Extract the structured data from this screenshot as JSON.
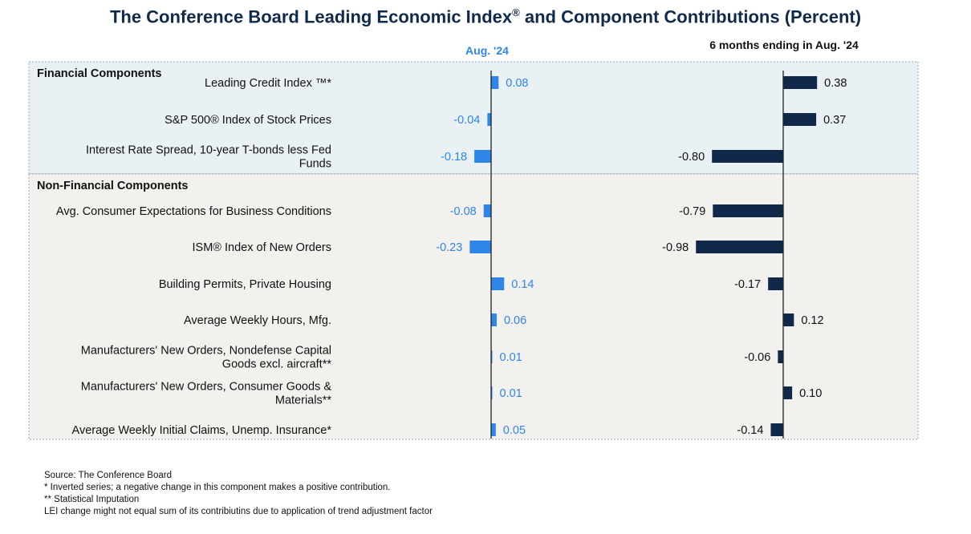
{
  "title": {
    "main": "The Conference Board Leading Economic Index",
    "sup": "®",
    "rest": " and Component Contributions (Percent)"
  },
  "colors": {
    "aug_bar": "#2e86ea",
    "aug_text": "#2e86ea",
    "six_bar": "#10284a",
    "six_text": "#111111",
    "financial_bg": "#e9f1f5",
    "nonfinancial_bg": "#f3f1ee",
    "border": "#8fa8c8"
  },
  "chart_data": {
    "type": "bar",
    "orientation": "horizontal",
    "groups": [
      {
        "name": "Financial Components",
        "start": 0,
        "count": 3
      },
      {
        "name": "Non-Financial Components",
        "start": 3,
        "count": 7
      }
    ],
    "categories": [
      [
        "Leading Credit Index ™*"
      ],
      [
        "S&P 500® Index of Stock Prices"
      ],
      [
        "Interest Rate Spread, 10-year T-bonds less Fed",
        "Funds"
      ],
      [
        "Avg. Consumer Expectations for Business Conditions"
      ],
      [
        "ISM® Index of New Orders"
      ],
      [
        "Building Permits, Private Housing"
      ],
      [
        "Average Weekly Hours, Mfg."
      ],
      [
        "Manufacturers' New Orders, Nondefense Capital",
        "Goods excl. aircraft**"
      ],
      [
        "Manufacturers' New Orders, Consumer Goods &",
        "Materials**"
      ],
      [
        "Average Weekly Initial Claims, Unemp. Insurance*"
      ]
    ],
    "series": [
      {
        "name": "Aug. '24",
        "values": [
          0.08,
          -0.04,
          -0.18,
          -0.08,
          -0.23,
          0.14,
          0.06,
          0.01,
          0.01,
          0.05
        ],
        "labels": [
          "0.08",
          "-0.04",
          "-0.18",
          "-0.08",
          "-0.23",
          "0.14",
          "0.06",
          "0.01",
          "0.01",
          "0.05"
        ]
      },
      {
        "name": "6 months ending in Aug. '24",
        "values": [
          0.38,
          0.37,
          -0.8,
          -0.79,
          -0.98,
          -0.17,
          0.12,
          -0.06,
          0.1,
          -0.14
        ],
        "labels": [
          "0.38",
          "0.37",
          "-0.80",
          "-0.79",
          "-0.98",
          "-0.17",
          "0.12",
          "-0.06",
          "0.10",
          "-0.14"
        ]
      }
    ]
  },
  "notes": [
    "Source: The Conference Board",
    "*  Inverted series; a negative change in this component makes a positive contribution.",
    "**  Statistical Imputation",
    "LEI change might not equal sum of its contribiutins due to application of trend adjustment factor"
  ]
}
